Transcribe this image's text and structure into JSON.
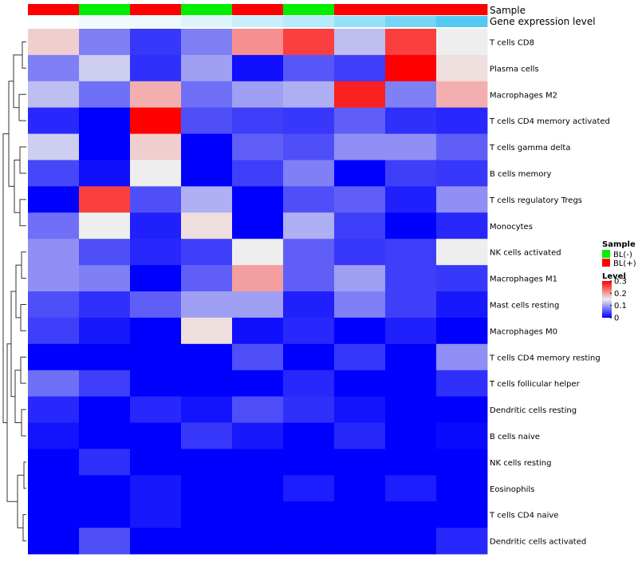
{
  "chart_data": {
    "type": "heatmap",
    "annotation_labels": {
      "sample": "Sample",
      "expression": "Gene expression level"
    },
    "sample_annotation": [
      "BL(+)",
      "BL(-)",
      "BL(+)",
      "BL(-)",
      "BL(+)",
      "BL(-)",
      "BL(+)",
      "BL(+)",
      "BL(+)"
    ],
    "expression_annotation": [
      0.02,
      0.08,
      0.1,
      0.18,
      0.28,
      0.38,
      0.55,
      0.72,
      0.9
    ],
    "rows": [
      "T cells CD8",
      "Plasma cells",
      "Macrophages M2",
      "T cells CD4 memory activated",
      "T cells gamma delta",
      "B cells memory",
      "T cells regulatory  Tregs",
      "Monocytes",
      "NK cells activated",
      "Macrophages M1",
      "Mast cells resting",
      "Macrophages M0",
      "T cells CD4 memory resting",
      "T cells follicular helper",
      "Dendritic cells resting",
      "B cells naive",
      "NK cells resting",
      "Eosinophils",
      "T cells CD4 naive",
      "Dendritic cells activated"
    ],
    "values": [
      [
        0.17,
        0.08,
        0.035,
        0.08,
        0.21,
        0.26,
        0.12,
        0.26,
        0.15
      ],
      [
        0.08,
        0.13,
        0.03,
        0.1,
        0.01,
        0.055,
        0.04,
        0.3,
        0.16
      ],
      [
        0.12,
        0.07,
        0.19,
        0.07,
        0.1,
        0.11,
        0.28,
        0.08,
        0.19
      ],
      [
        0.025,
        0.0,
        0.3,
        0.05,
        0.04,
        0.035,
        0.06,
        0.03,
        0.025
      ],
      [
        0.13,
        0.0,
        0.17,
        0.0,
        0.06,
        0.05,
        0.09,
        0.09,
        0.06
      ],
      [
        0.045,
        0.01,
        0.15,
        0.0,
        0.04,
        0.08,
        0.0,
        0.04,
        0.035
      ],
      [
        0.0,
        0.26,
        0.05,
        0.11,
        0.0,
        0.05,
        0.06,
        0.02,
        0.09
      ],
      [
        0.07,
        0.15,
        0.02,
        0.16,
        0.0,
        0.11,
        0.04,
        0.0,
        0.025
      ],
      [
        0.09,
        0.05,
        0.025,
        0.04,
        0.15,
        0.06,
        0.035,
        0.04,
        0.15
      ],
      [
        0.09,
        0.08,
        0.0,
        0.06,
        0.2,
        0.06,
        0.1,
        0.04,
        0.035
      ],
      [
        0.05,
        0.03,
        0.06,
        0.1,
        0.1,
        0.02,
        0.08,
        0.04,
        0.015
      ],
      [
        0.04,
        0.015,
        0.0,
        0.16,
        0.01,
        0.025,
        0.0,
        0.02,
        0.0
      ],
      [
        0.0,
        0.0,
        0.0,
        0.0,
        0.05,
        0.0,
        0.035,
        0.0,
        0.09
      ],
      [
        0.07,
        0.04,
        0.0,
        0.0,
        0.0,
        0.025,
        0.0,
        0.0,
        0.03
      ],
      [
        0.025,
        0.0,
        0.025,
        0.012,
        0.05,
        0.03,
        0.012,
        0.0,
        0.0
      ],
      [
        0.012,
        0.0,
        0.0,
        0.035,
        0.015,
        0.0,
        0.025,
        0.0,
        0.006
      ],
      [
        0.0,
        0.03,
        0.0,
        0.0,
        0.0,
        0.0,
        0.0,
        0.0,
        0.0
      ],
      [
        0.0,
        0.0,
        0.015,
        0.0,
        0.0,
        0.018,
        0.0,
        0.018,
        0.0
      ],
      [
        0.0,
        0.0,
        0.015,
        0.0,
        0.0,
        0.0,
        0.0,
        0.0,
        0.0
      ],
      [
        0.0,
        0.05,
        0.0,
        0.0,
        0.0,
        0.0,
        0.0,
        0.0,
        0.025
      ]
    ],
    "color_scale": {
      "min": 0,
      "max": 0.3,
      "colors": [
        "#0000ff",
        "#eeeeee",
        "#ff0000"
      ]
    },
    "legend": {
      "sample_title": "Sample",
      "sample_entries": [
        {
          "label": "BL(-)",
          "color": "#00ee00"
        },
        {
          "label": "BL(+)",
          "color": "#ff0000"
        }
      ],
      "level_title": "Level",
      "level_ticks": [
        {
          "value": 0.3,
          "label": "0.3"
        },
        {
          "value": 0.2,
          "label": "0.2"
        },
        {
          "value": 0.1,
          "label": "0.1"
        },
        {
          "value": 0,
          "label": "0"
        }
      ]
    },
    "sample_colors": {
      "BL(-)": "#00ee00",
      "BL(+)": "#ff0000"
    },
    "expression_colors": {
      "low": "#ffffff",
      "high": "#40c4f0"
    },
    "dendrogram": "row"
  }
}
